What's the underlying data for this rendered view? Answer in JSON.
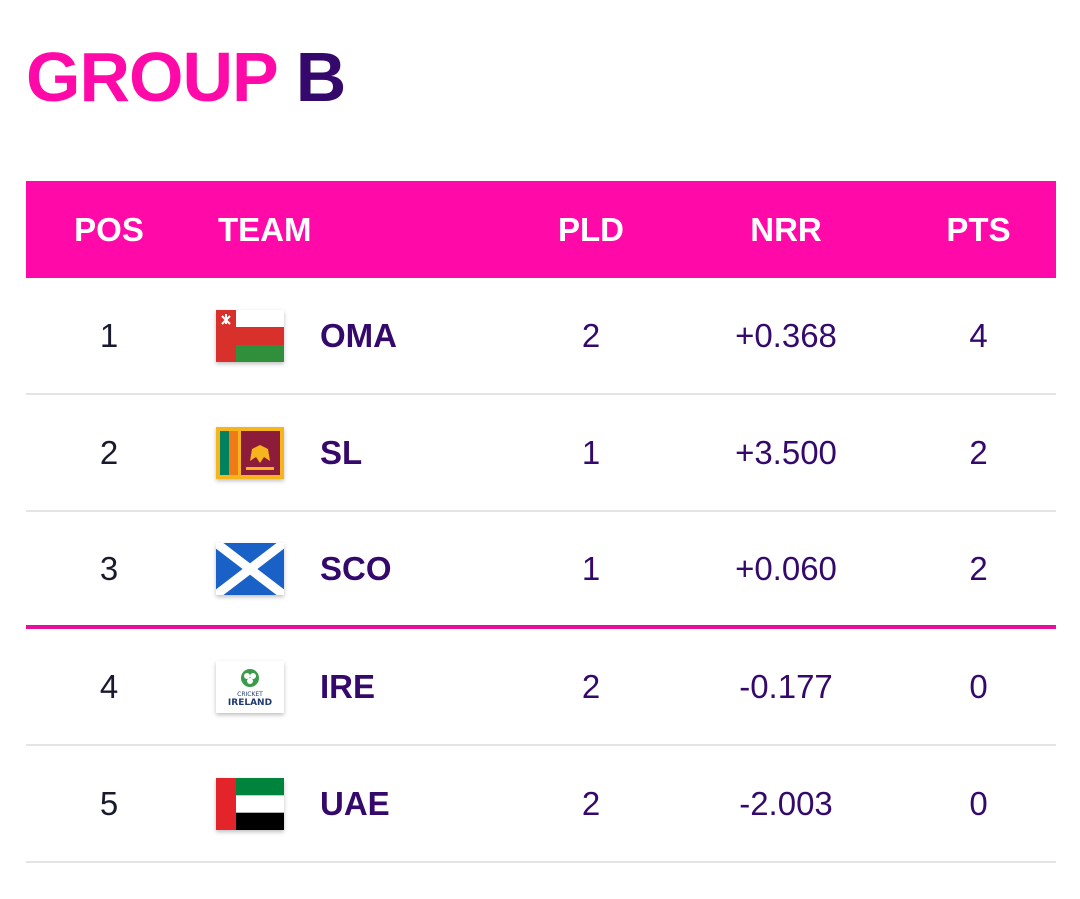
{
  "title": {
    "part1": "GROUP",
    "part2": "B"
  },
  "colors": {
    "accent": "#ff0aa8",
    "text": "#34096b"
  },
  "headers": {
    "pos": "POS",
    "team": "TEAM",
    "pld": "PLD",
    "nrr": "NRR",
    "pts": "PTS"
  },
  "rows": [
    {
      "pos": "1",
      "team": "OMA",
      "flag_icon": "oman-flag-icon",
      "pld": "2",
      "nrr": "+0.368",
      "pts": "4"
    },
    {
      "pos": "2",
      "team": "SL",
      "flag_icon": "sri-lanka-flag-icon",
      "pld": "1",
      "nrr": "+3.500",
      "pts": "2"
    },
    {
      "pos": "3",
      "team": "SCO",
      "flag_icon": "scotland-flag-icon",
      "pld": "1",
      "nrr": "+0.060",
      "pts": "2"
    },
    {
      "pos": "4",
      "team": "IRE",
      "flag_icon": "cricket-ireland-logo-icon",
      "pld": "2",
      "nrr": "-0.177",
      "pts": "0"
    },
    {
      "pos": "5",
      "team": "UAE",
      "flag_icon": "uae-flag-icon",
      "pld": "2",
      "nrr": "-2.003",
      "pts": "0"
    }
  ],
  "ireland_logo_text": {
    "line1": "CRICKET",
    "line2": "IRELAND"
  }
}
